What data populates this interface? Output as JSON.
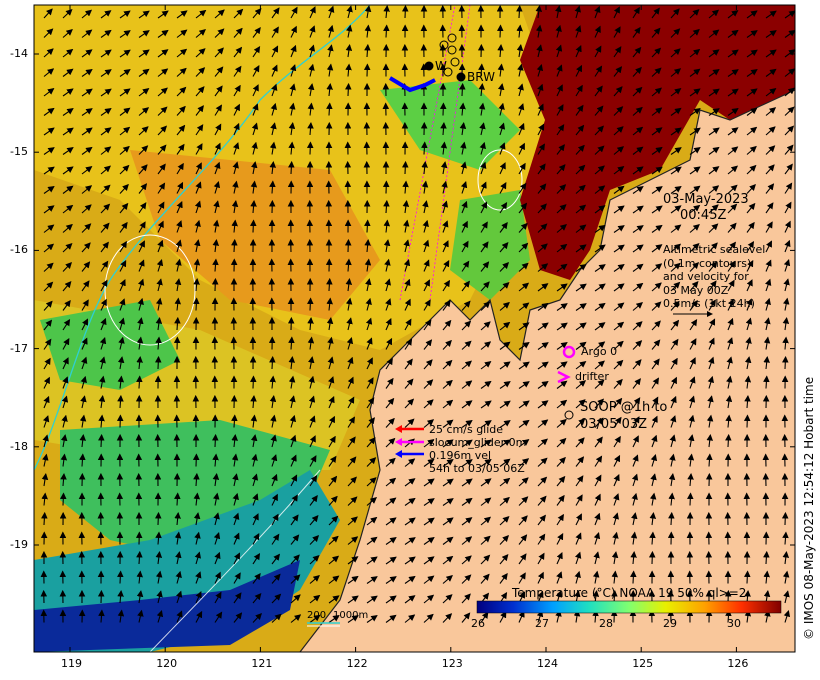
{
  "axes": {
    "x_ticks": [
      "119",
      "120",
      "121",
      "122",
      "123",
      "124",
      "125",
      "126"
    ],
    "y_ticks": [
      "-14",
      "-15",
      "-16",
      "-17",
      "-18",
      "-19"
    ]
  },
  "header": {
    "date": "03-May-2023",
    "time": "00:45Z"
  },
  "altimetry_note": [
    "Altimetric sealevel",
    "(0.1m contours)",
    "and velocity for",
    "03 May 00Z",
    "0.5m/s (1kt 24h)"
  ],
  "legend_markers": {
    "argo": "Argo 0",
    "drifter": "drifter",
    "soop_line1": "SOOP @1h to",
    "soop_line2": "03/05 03Z"
  },
  "glider_legend": {
    "glide": "25 cm/s glide",
    "slocum": "slocum_glider 0m",
    "vel": "0.196m vel",
    "span": "54h to 03/05 06Z"
  },
  "station_labels": [
    "W",
    "BRW"
  ],
  "scale_bar": {
    "label": "200",
    "depth": "1000m"
  },
  "colorbar": {
    "title": "Temperature (°C) NOAA 19 50% ql>=2",
    "ticks": [
      "26",
      "27",
      "28",
      "29",
      "30"
    ]
  },
  "credit": "© IMOS 08-May-2023 12:54:12 Hobart time",
  "colors": {
    "land": "#f9c79b",
    "hot": "#8b0000",
    "glide_arrow": "#ff0000",
    "slocum_arrow": "#ff00ff",
    "vel_arrow": "#0000ff",
    "argo": "#ff00ff"
  }
}
